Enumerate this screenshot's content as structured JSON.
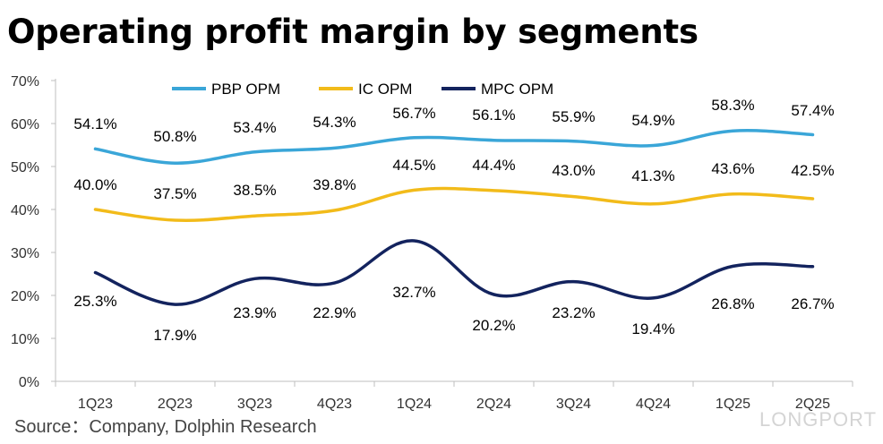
{
  "title": "Operating profit margin by segments",
  "source": "Source：Company, Dolphin Research",
  "brand": "LONGPORT",
  "chart_data": {
    "type": "line",
    "categories": [
      "1Q23",
      "2Q23",
      "3Q23",
      "4Q23",
      "1Q24",
      "2Q24",
      "3Q24",
      "4Q24",
      "1Q25",
      "2Q25"
    ],
    "ylim": [
      0,
      70
    ],
    "yticks": [
      0,
      10,
      20,
      30,
      40,
      50,
      60,
      70
    ],
    "ytick_labels": [
      "0%",
      "10%",
      "20%",
      "30%",
      "40%",
      "50%",
      "60%",
      "70%"
    ],
    "grid": false,
    "legend_position": "top",
    "series": [
      {
        "name": "PBP OPM",
        "color": "#3aa6d8",
        "values": [
          54.1,
          50.8,
          53.4,
          54.3,
          56.7,
          56.1,
          55.9,
          54.9,
          58.3,
          57.4
        ],
        "labels": [
          "54.1%",
          "50.8%",
          "53.4%",
          "54.3%",
          "56.7%",
          "56.1%",
          "55.9%",
          "54.9%",
          "58.3%",
          "57.4%"
        ]
      },
      {
        "name": "IC OPM",
        "color": "#f2bb1a",
        "values": [
          40.0,
          37.5,
          38.5,
          39.8,
          44.5,
          44.4,
          43.0,
          41.3,
          43.6,
          42.5
        ],
        "labels": [
          "40.0%",
          "37.5%",
          "38.5%",
          "39.8%",
          "44.5%",
          "44.4%",
          "43.0%",
          "41.3%",
          "43.6%",
          "42.5%"
        ]
      },
      {
        "name": "MPC OPM",
        "color": "#13235e",
        "values": [
          25.3,
          17.9,
          23.9,
          22.9,
          32.7,
          20.2,
          23.2,
          19.4,
          26.8,
          26.7
        ],
        "labels": [
          "25.3%",
          "17.9%",
          "23.9%",
          "22.9%",
          "32.7%",
          "20.2%",
          "23.2%",
          "19.4%",
          "26.8%",
          "26.7%"
        ]
      }
    ]
  }
}
